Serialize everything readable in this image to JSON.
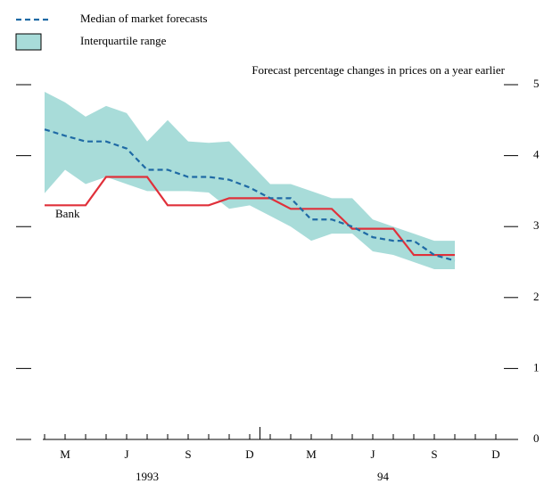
{
  "chart_data": {
    "type": "line",
    "subtitle": "Forecast percentage changes in prices on a year earlier",
    "categories": [
      null,
      "M",
      null,
      null,
      "J",
      null,
      null,
      "S",
      null,
      null,
      "D",
      null,
      null,
      "M",
      null,
      null,
      "J",
      null,
      null,
      "S",
      null,
      null,
      "D"
    ],
    "year_labels": [
      "1993",
      "94"
    ],
    "series": [
      {
        "name": "Median of market forecasts",
        "color": "#1f6aa5",
        "values": [
          4.37,
          4.28,
          4.2,
          4.2,
          4.1,
          3.8,
          3.8,
          3.7,
          3.7,
          3.66,
          3.55,
          3.4,
          3.4,
          3.1,
          3.1,
          3.0,
          2.85,
          2.8,
          2.8,
          2.6,
          2.52,
          null,
          null
        ]
      },
      {
        "name": "Interquartile range",
        "color": "#a8dcd9",
        "upper": [
          4.9,
          4.75,
          4.55,
          4.7,
          4.6,
          4.2,
          4.5,
          4.2,
          4.18,
          4.2,
          3.9,
          3.6,
          3.6,
          3.5,
          3.4,
          3.4,
          3.1,
          3.0,
          2.9,
          2.8,
          2.8,
          null,
          null
        ],
        "lower": [
          3.47,
          3.8,
          3.6,
          3.7,
          3.6,
          3.5,
          3.5,
          3.5,
          3.48,
          3.25,
          3.3,
          3.15,
          3.0,
          2.8,
          2.9,
          2.9,
          2.65,
          2.6,
          2.5,
          2.4,
          2.4,
          null,
          null
        ]
      }
    ],
    "bank": {
      "name": "Bank",
      "color": "#e0303a",
      "values": [
        3.3,
        3.3,
        3.3,
        3.7,
        3.7,
        3.7,
        3.3,
        3.3,
        3.3,
        3.4,
        3.4,
        3.4,
        3.25,
        3.25,
        3.25,
        2.97,
        2.97,
        2.97,
        2.6,
        2.6,
        2.6,
        null,
        null
      ]
    },
    "ylim": [
      0,
      5
    ],
    "yticks": [
      0,
      1,
      2,
      3,
      4,
      5
    ]
  }
}
